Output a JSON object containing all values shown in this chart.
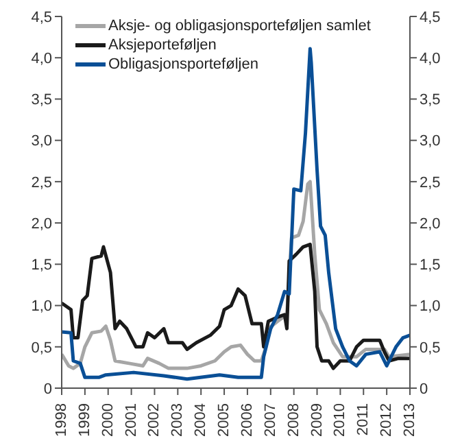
{
  "chart_data": {
    "type": "line",
    "xlim": [
      1998,
      2013
    ],
    "xticks": [
      {
        "value": 1998,
        "label": "1998"
      },
      {
        "value": 1999,
        "label": "1999"
      },
      {
        "value": 2000,
        "label": "2000"
      },
      {
        "value": 2001,
        "label": "2001"
      },
      {
        "value": 2002,
        "label": "2002"
      },
      {
        "value": 2003,
        "label": "2003"
      },
      {
        "value": 2004,
        "label": "2004"
      },
      {
        "value": 2005,
        "label": "2005"
      },
      {
        "value": 2006,
        "label": "2006"
      },
      {
        "value": 2007,
        "label": "2007"
      },
      {
        "value": 2008,
        "label": "2008"
      },
      {
        "value": 2009,
        "label": "2009"
      },
      {
        "value": 2010,
        "label": "2010"
      },
      {
        "value": 2011,
        "label": "2011"
      },
      {
        "value": 2012,
        "label": "2012"
      },
      {
        "value": 2013,
        "label": "2013"
      }
    ],
    "ylim": [
      0,
      4.5
    ],
    "yticks": [
      0,
      {
        "value": 0.5,
        "label": "0,5"
      },
      {
        "value": 1,
        "label": "1,0"
      },
      {
        "value": 1.5,
        "label": "1,5"
      },
      {
        "value": 2,
        "label": "2,0"
      },
      {
        "value": 2.5,
        "label": "2,5"
      },
      {
        "value": 3,
        "label": "3,0"
      },
      {
        "value": 3.5,
        "label": "3,5"
      },
      {
        "value": 4,
        "label": "4,0"
      },
      {
        "value": 4.5,
        "label": "4,5"
      }
    ],
    "y2lim": [
      0,
      4.5
    ],
    "y2ticks": [
      0,
      {
        "value": 0.5,
        "label": "0,5"
      },
      {
        "value": 1,
        "label": "1,0"
      },
      {
        "value": 1.5,
        "label": "1,5"
      },
      {
        "value": 2,
        "label": "2,0"
      },
      {
        "value": 2.5,
        "label": "2,5"
      },
      {
        "value": 3,
        "label": "3,0"
      },
      {
        "value": 3.5,
        "label": "3,5"
      },
      {
        "value": 4,
        "label": "4,0"
      },
      {
        "value": 4.5,
        "label": "4,5"
      }
    ],
    "grid": false,
    "legend": "top left",
    "marker": "none",
    "line_style": "solid",
    "series": [
      {
        "name": "Aksje- og obligasjonsporteføljen samlet",
        "color": "#a6a6a6",
        "x": [
          1998.0,
          1998.3,
          1998.5,
          1998.8,
          1999.0,
          1999.3,
          1999.7,
          1999.9,
          2000.1,
          2000.3,
          2000.9,
          2001.5,
          2001.7,
          2002.2,
          2002.6,
          2003.4,
          2004.0,
          2004.6,
          2005.0,
          2005.3,
          2005.7,
          2006.0,
          2006.3,
          2006.6,
          2006.8,
          2006.9,
          2007.3,
          2007.7,
          2007.9,
          2008.2,
          2008.4,
          2008.6,
          2008.7,
          2008.9,
          2009.1,
          2009.4,
          2009.7,
          2010.1,
          2010.7,
          2011.1,
          2011.9,
          2012.1,
          2013.0
        ],
        "values": [
          0.41,
          0.27,
          0.24,
          0.3,
          0.5,
          0.67,
          0.69,
          0.75,
          0.58,
          0.33,
          0.3,
          0.27,
          0.36,
          0.3,
          0.24,
          0.24,
          0.27,
          0.33,
          0.44,
          0.5,
          0.52,
          0.41,
          0.33,
          0.33,
          0.5,
          0.72,
          0.81,
          0.89,
          1.82,
          1.85,
          2.02,
          2.47,
          2.5,
          1.62,
          0.95,
          0.78,
          0.55,
          0.38,
          0.38,
          0.47,
          0.47,
          0.38,
          0.41
        ]
      },
      {
        "name": "Aksjeporteføljen",
        "color": "#1a1a1a",
        "x": [
          1998.0,
          1998.4,
          1998.5,
          1998.7,
          1998.9,
          1999.1,
          1999.3,
          1999.7,
          1999.8,
          2000.1,
          2000.3,
          2000.5,
          2000.8,
          2001.2,
          2001.5,
          2001.7,
          2002.0,
          2002.4,
          2002.6,
          2003.2,
          2003.4,
          2003.8,
          2004.4,
          2004.8,
          2005.0,
          2005.3,
          2005.6,
          2005.9,
          2006.2,
          2006.6,
          2006.7,
          2006.9,
          2007.3,
          2007.6,
          2007.7,
          2007.8,
          2008.1,
          2008.4,
          2008.7,
          2008.9,
          2009.0,
          2009.2,
          2009.5,
          2009.7,
          2010.0,
          2010.4,
          2010.7,
          2011.0,
          2011.7,
          2011.9,
          2012.1,
          2012.5,
          2013.0
        ],
        "values": [
          1.03,
          0.95,
          0.61,
          0.61,
          1.06,
          1.12,
          1.57,
          1.6,
          1.71,
          1.4,
          0.72,
          0.81,
          0.72,
          0.5,
          0.5,
          0.67,
          0.61,
          0.72,
          0.55,
          0.55,
          0.47,
          0.55,
          0.64,
          0.75,
          0.95,
          1.0,
          1.2,
          1.12,
          0.78,
          0.78,
          0.5,
          0.81,
          0.86,
          0.89,
          0.72,
          1.54,
          1.62,
          1.71,
          1.74,
          1.17,
          0.5,
          0.33,
          0.33,
          0.24,
          0.33,
          0.33,
          0.5,
          0.58,
          0.58,
          0.44,
          0.33,
          0.36,
          0.36
        ]
      },
      {
        "name": "Obligasjonsporteføljen",
        "color": "#0a4f96",
        "x": [
          1998.0,
          1998.4,
          1998.5,
          1998.8,
          1999.0,
          1999.6,
          1999.9,
          2001.1,
          2002.4,
          2003.4,
          2004.8,
          2005.6,
          2006.3,
          2006.6,
          2006.7,
          2007.0,
          2007.3,
          2007.6,
          2007.8,
          2008.0,
          2008.3,
          2008.5,
          2008.7,
          2008.75,
          2009.0,
          2009.15,
          2009.35,
          2009.5,
          2009.8,
          2010.1,
          2010.4,
          2010.7,
          2011.1,
          2011.7,
          2012.0,
          2012.4,
          2012.7,
          2013.0
        ],
        "values": [
          0.68,
          0.67,
          0.33,
          0.3,
          0.13,
          0.13,
          0.16,
          0.19,
          0.15,
          0.11,
          0.16,
          0.13,
          0.13,
          0.13,
          0.38,
          0.72,
          0.89,
          1.17,
          1.14,
          2.41,
          2.39,
          3.09,
          4.11,
          3.94,
          2.64,
          1.96,
          1.85,
          1.4,
          0.72,
          0.5,
          0.33,
          0.27,
          0.41,
          0.44,
          0.27,
          0.5,
          0.61,
          0.64
        ]
      }
    ]
  }
}
